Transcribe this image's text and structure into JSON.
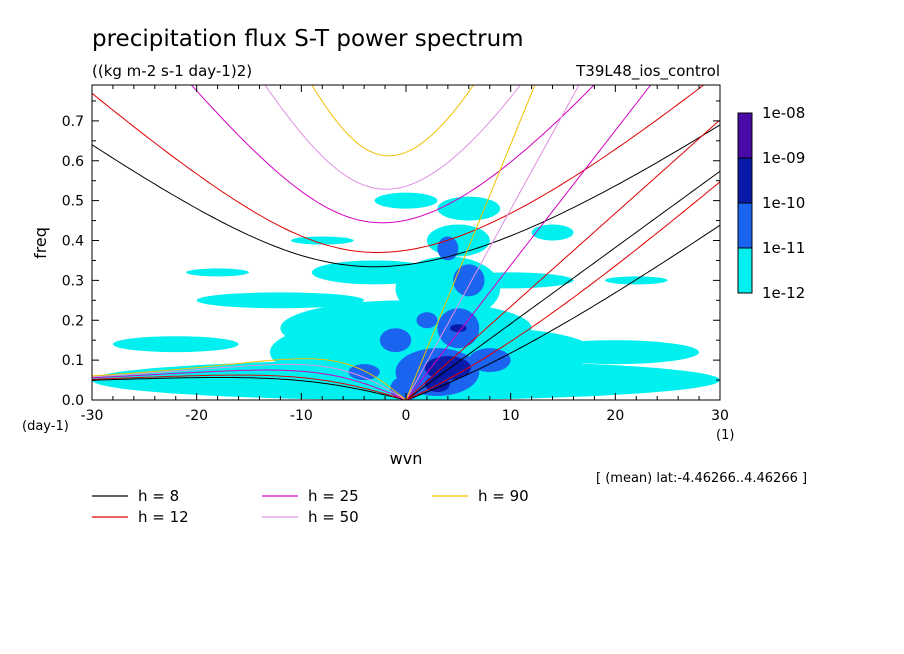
{
  "chart_data": {
    "type": "heatmap",
    "title": "precipitation flux S-T power spectrum",
    "subtitle": "((kg m-2 s-1 day-1)2)",
    "run_name": "T39L48_ios_control",
    "xlabel": "wvn",
    "ylabel": "freq",
    "x_unit": "(1)",
    "y_unit": "(day-1)",
    "xlim": [
      -30,
      30
    ],
    "ylim": [
      0,
      0.79
    ],
    "x_ticks": [
      -30,
      -20,
      -10,
      0,
      10,
      20,
      30
    ],
    "x_tick_labels": [
      "-30",
      "-20",
      "-10",
      "0",
      "10",
      "20",
      "30"
    ],
    "y_ticks": [
      0,
      0.1,
      0.2,
      0.3,
      0.4,
      0.5,
      0.6,
      0.7
    ],
    "y_tick_labels": [
      "0.0",
      "0.1",
      "0.2",
      "0.3",
      "0.4",
      "0.5",
      "0.6",
      "0.7"
    ],
    "footnote": "[ (mean) lat:-4.46266..4.46266 ]",
    "colorbar": {
      "labels": [
        "1e-08",
        "1e-09",
        "1e-10",
        "1e-11",
        "1e-12"
      ],
      "colors": [
        "#4a0aa8",
        "#0a1aa8",
        "#1a64f0",
        "#00f0f0"
      ]
    },
    "series": [
      {
        "name": "h = 8",
        "h": 8,
        "color": "#000000"
      },
      {
        "name": "h = 12",
        "h": 12,
        "color": "#e00000"
      },
      {
        "name": "h = 25",
        "h": 25,
        "color": "#d400c0"
      },
      {
        "name": "h = 50",
        "h": 50,
        "color": "#e090e0"
      },
      {
        "name": "h = 90",
        "h": 90,
        "color": "#f0c000"
      }
    ],
    "power_regions": [
      {
        "level": "1e-11",
        "color": "#00f0f0",
        "blobs": [
          [
            0,
            0.05,
            30,
            0.05
          ],
          [
            0,
            0.18,
            12,
            0.07
          ],
          [
            -5,
            0.12,
            8,
            0.07
          ],
          [
            8,
            0.12,
            10,
            0.06
          ],
          [
            4,
            0.28,
            5,
            0.08
          ],
          [
            -10,
            0.05,
            8,
            0.04
          ],
          [
            -20,
            0.04,
            6,
            0.02
          ],
          [
            15,
            0.05,
            10,
            0.04
          ],
          [
            5,
            0.4,
            3,
            0.04
          ],
          [
            -3,
            0.32,
            6,
            0.03
          ],
          [
            10,
            0.3,
            6,
            0.02
          ],
          [
            -12,
            0.25,
            8,
            0.02
          ],
          [
            20,
            0.12,
            8,
            0.03
          ],
          [
            -22,
            0.14,
            6,
            0.02
          ],
          [
            0,
            0.5,
            3,
            0.02
          ],
          [
            6,
            0.48,
            3,
            0.03
          ],
          [
            -8,
            0.4,
            3,
            0.01
          ],
          [
            14,
            0.42,
            2,
            0.02
          ],
          [
            -18,
            0.32,
            3,
            0.01
          ],
          [
            22,
            0.3,
            3,
            0.01
          ]
        ]
      },
      {
        "level": "1e-10",
        "color": "#1a64f0",
        "blobs": [
          [
            3,
            0.07,
            4,
            0.06
          ],
          [
            0,
            0.03,
            1.5,
            0.03
          ],
          [
            5,
            0.18,
            2,
            0.05
          ],
          [
            -1,
            0.15,
            1.5,
            0.03
          ],
          [
            8,
            0.1,
            2,
            0.03
          ],
          [
            6,
            0.3,
            1.5,
            0.04
          ],
          [
            -4,
            0.07,
            1.5,
            0.02
          ],
          [
            4,
            0.38,
            1,
            0.03
          ],
          [
            2,
            0.2,
            1,
            0.02
          ]
        ]
      },
      {
        "level": "1e-09",
        "color": "#0a1aa8",
        "blobs": [
          [
            4,
            0.08,
            2.2,
            0.03
          ],
          [
            3,
            0.04,
            1.2,
            0.02
          ],
          [
            5,
            0.18,
            0.8,
            0.01
          ]
        ]
      }
    ]
  },
  "legend": [
    {
      "label": "h =  8",
      "color": "#000000"
    },
    {
      "label": "h = 12",
      "color": "#e00000"
    },
    {
      "label": "h = 25",
      "color": "#d400c0"
    },
    {
      "label": "h = 50",
      "color": "#e090e0"
    },
    {
      "label": "h = 90",
      "color": "#f0c000"
    }
  ]
}
